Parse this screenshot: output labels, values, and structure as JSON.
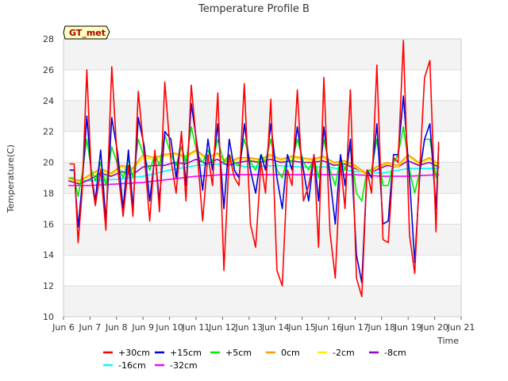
{
  "chart_data": {
    "type": "line",
    "title": "Temperature Profile B",
    "xlabel": "Time",
    "ylabel": "Temperature(C)",
    "badge": "GT_met",
    "xlim": [
      6,
      21
    ],
    "ylim": [
      10,
      28
    ],
    "x_ticks": [
      {
        "value": 6,
        "label": "Jun 6"
      },
      {
        "value": 7,
        "label": "Jun 7"
      },
      {
        "value": 8,
        "label": "Jun 8"
      },
      {
        "value": 9,
        "label": "Jun 9"
      },
      {
        "value": 10,
        "label": "Jun 10"
      },
      {
        "value": 11,
        "label": "Jun 11"
      },
      {
        "value": 12,
        "label": "Jun 12"
      },
      {
        "value": 13,
        "label": "Jun 13"
      },
      {
        "value": 14,
        "label": "Jun 14"
      },
      {
        "value": 15,
        "label": "Jun 15"
      },
      {
        "value": 16,
        "label": "Jun 16"
      },
      {
        "value": 17,
        "label": "Jun 17"
      },
      {
        "value": 18,
        "label": "Jun 18"
      },
      {
        "value": 19,
        "label": "Jun 19"
      },
      {
        "value": 20,
        "label": "Jun 20"
      },
      {
        "value": 21,
        "label": "Jun 21"
      }
    ],
    "y_ticks": [
      10,
      12,
      14,
      16,
      18,
      20,
      22,
      24,
      26,
      28
    ],
    "grid": true,
    "legend": "bottom",
    "colors": {
      "plot_bg": "#ffffff",
      "band_bg": "#f3f3f3",
      "grid": "#dddddd",
      "badge_bg": "#ffffc0"
    },
    "series": [
      {
        "name": "+30cm",
        "color": "#ff0000",
        "x": [
          6.25,
          6.4,
          6.55,
          6.7,
          6.88,
          7.05,
          7.2,
          7.4,
          7.6,
          7.82,
          8.05,
          8.25,
          8.45,
          8.62,
          8.82,
          9.05,
          9.25,
          9.45,
          9.62,
          9.82,
          10.05,
          10.25,
          10.45,
          10.62,
          10.82,
          11.05,
          11.25,
          11.45,
          11.62,
          11.82,
          12.05,
          12.25,
          12.45,
          12.62,
          12.82,
          13.05,
          13.25,
          13.45,
          13.62,
          13.82,
          14.05,
          14.25,
          14.45,
          14.62,
          14.82,
          15.05,
          15.25,
          15.45,
          15.62,
          15.82,
          16.05,
          16.25,
          16.45,
          16.62,
          16.82,
          17.05,
          17.25,
          17.45,
          17.62,
          17.82,
          18.05,
          18.25,
          18.45,
          18.62,
          18.82,
          19.05,
          19.25,
          19.45,
          19.62,
          19.82,
          20.05,
          20.15
        ],
        "y": [
          19.9,
          19.9,
          14.8,
          18.0,
          26.0,
          19.0,
          17.2,
          19.5,
          15.6,
          26.2,
          19.5,
          16.5,
          19.8,
          16.5,
          24.6,
          20.4,
          16.2,
          20.8,
          16.8,
          25.2,
          20.2,
          18.0,
          22.0,
          17.5,
          25.0,
          20.5,
          16.2,
          20.5,
          18.5,
          24.5,
          13.0,
          20.5,
          19.0,
          18.5,
          25.1,
          16.0,
          14.5,
          20.0,
          18.0,
          24.1,
          13.0,
          12.0,
          19.5,
          18.5,
          24.7,
          17.5,
          18.5,
          20.5,
          14.5,
          25.5,
          15.5,
          12.5,
          20.0,
          17.0,
          24.7,
          12.5,
          11.3,
          19.5,
          18.0,
          26.3,
          15.0,
          14.8,
          20.3,
          20.0,
          27.9,
          15.3,
          12.8,
          20.0,
          25.5,
          26.6,
          15.5,
          21.3
        ]
      },
      {
        "name": "+15cm",
        "color": "#0000dd",
        "x": [
          6.25,
          6.4,
          6.55,
          6.7,
          6.88,
          7.05,
          7.2,
          7.4,
          7.6,
          7.82,
          8.05,
          8.25,
          8.45,
          8.62,
          8.82,
          9.05,
          9.25,
          9.45,
          9.62,
          9.82,
          10.05,
          10.25,
          10.45,
          10.62,
          10.82,
          11.05,
          11.25,
          11.45,
          11.62,
          11.82,
          12.05,
          12.25,
          12.45,
          12.62,
          12.82,
          13.05,
          13.25,
          13.45,
          13.62,
          13.82,
          14.05,
          14.25,
          14.45,
          14.62,
          14.82,
          15.05,
          15.25,
          15.45,
          15.62,
          15.82,
          16.05,
          16.25,
          16.45,
          16.62,
          16.82,
          17.05,
          17.25,
          17.45,
          17.62,
          17.82,
          18.05,
          18.25,
          18.45,
          18.62,
          18.82,
          19.05,
          19.25,
          19.45,
          19.62,
          19.82,
          20.05,
          20.15
        ],
        "y": [
          19.5,
          19.5,
          15.8,
          18.5,
          23.0,
          19.2,
          17.5,
          20.8,
          16.2,
          22.9,
          20.5,
          17.0,
          20.8,
          17.0,
          22.9,
          21.0,
          17.5,
          20.5,
          17.5,
          22.0,
          21.5,
          19.0,
          21.8,
          18.5,
          23.8,
          21.0,
          18.2,
          21.5,
          19.5,
          22.5,
          17.0,
          21.5,
          19.5,
          19.0,
          22.5,
          19.5,
          18.0,
          20.5,
          19.5,
          22.5,
          19.0,
          17.0,
          20.5,
          19.5,
          22.3,
          19.5,
          17.5,
          20.5,
          17.5,
          22.3,
          19.0,
          16.0,
          20.5,
          18.5,
          21.5,
          14.0,
          12.2,
          19.5,
          19.0,
          22.5,
          16.0,
          16.2,
          20.5,
          20.5,
          24.3,
          19.0,
          13.5,
          19.5,
          21.5,
          22.5,
          17.0,
          21.0
        ]
      },
      {
        "name": "+5cm",
        "color": "#00ee00",
        "x": [
          6.25,
          6.4,
          6.55,
          6.7,
          6.88,
          7.05,
          7.2,
          7.4,
          7.6,
          7.82,
          8.05,
          8.25,
          8.45,
          8.62,
          8.82,
          9.05,
          9.25,
          9.45,
          9.62,
          9.82,
          10.05,
          10.25,
          10.45,
          10.62,
          10.82,
          11.05,
          11.25,
          11.45,
          11.62,
          11.82,
          12.05,
          12.25,
          12.45,
          12.62,
          12.82,
          13.05,
          13.25,
          13.45,
          13.62,
          13.82,
          14.05,
          14.25,
          14.45,
          14.62,
          14.82,
          15.05,
          15.25,
          15.45,
          15.62,
          15.82,
          16.05,
          16.25,
          16.45,
          16.62,
          16.82,
          17.05,
          17.25,
          17.45,
          17.62,
          17.82,
          18.05,
          18.25,
          18.45,
          18.62,
          18.82,
          19.05,
          19.25,
          19.45,
          19.62,
          19.82,
          20.05,
          20.15
        ],
        "y": [
          19.0,
          19.0,
          17.8,
          19.2,
          21.5,
          19.5,
          18.8,
          20.0,
          18.5,
          21.0,
          19.8,
          19.0,
          20.2,
          19.0,
          21.5,
          20.3,
          19.5,
          20.5,
          19.8,
          21.8,
          20.5,
          19.8,
          21.0,
          20.0,
          22.3,
          20.5,
          20.0,
          20.8,
          20.0,
          21.5,
          20.0,
          20.5,
          20.0,
          19.8,
          21.5,
          20.0,
          19.5,
          20.5,
          20.0,
          21.5,
          19.5,
          19.0,
          20.3,
          20.0,
          21.5,
          20.0,
          19.5,
          20.3,
          19.0,
          21.5,
          19.5,
          18.5,
          20.3,
          19.5,
          21.0,
          18.0,
          17.5,
          19.5,
          19.5,
          21.5,
          18.5,
          18.5,
          20.0,
          20.5,
          22.3,
          19.5,
          18.0,
          19.5,
          21.5,
          21.5,
          19.0,
          20.0
        ]
      },
      {
        "name": "0cm",
        "color": "#ff9900",
        "x": [
          6.2,
          6.6,
          7.0,
          7.4,
          7.8,
          8.2,
          8.6,
          9.0,
          9.4,
          9.8,
          10.2,
          10.6,
          11.0,
          11.4,
          11.8,
          12.2,
          12.6,
          13.0,
          13.4,
          13.8,
          14.2,
          14.6,
          15.0,
          15.4,
          15.8,
          16.2,
          16.6,
          17.0,
          17.4,
          17.8,
          18.2,
          18.6,
          19.0,
          19.4,
          19.8,
          20.15
        ],
        "y": [
          19.0,
          18.8,
          19.2,
          19.6,
          19.3,
          19.8,
          19.6,
          20.5,
          20.3,
          20.5,
          20.6,
          20.4,
          20.8,
          20.3,
          20.6,
          20.0,
          20.3,
          20.3,
          20.2,
          20.5,
          20.2,
          20.4,
          20.3,
          20.2,
          20.4,
          20.0,
          20.1,
          19.8,
          19.3,
          19.7,
          20.0,
          19.8,
          20.5,
          20.0,
          20.3,
          19.9
        ]
      },
      {
        "name": "-2cm",
        "color": "#ffee00",
        "x": [
          6.2,
          6.6,
          7.0,
          7.4,
          7.8,
          8.2,
          8.6,
          9.0,
          9.4,
          9.8,
          10.2,
          10.6,
          11.0,
          11.4,
          11.8,
          12.2,
          12.6,
          13.0,
          13.4,
          13.8,
          14.2,
          14.6,
          15.0,
          15.4,
          15.8,
          16.2,
          16.6,
          17.0,
          17.4,
          17.8,
          18.2,
          18.6,
          19.0,
          19.4,
          19.8,
          20.15
        ],
        "y": [
          18.9,
          18.7,
          19.1,
          19.5,
          19.2,
          19.7,
          19.5,
          20.3,
          20.2,
          20.4,
          20.5,
          20.3,
          20.7,
          20.2,
          20.5,
          19.9,
          20.2,
          20.2,
          20.1,
          20.4,
          20.1,
          20.3,
          20.2,
          20.1,
          20.3,
          19.9,
          20.0,
          19.7,
          19.2,
          19.6,
          19.9,
          19.7,
          20.4,
          19.9,
          20.2,
          19.8
        ]
      },
      {
        "name": "-8cm",
        "color": "#9900cc",
        "x": [
          6.2,
          6.6,
          7.0,
          7.4,
          7.8,
          8.2,
          8.6,
          9.0,
          9.4,
          9.8,
          10.2,
          10.6,
          11.0,
          11.4,
          11.8,
          12.2,
          12.6,
          13.0,
          13.4,
          13.8,
          14.2,
          14.6,
          15.0,
          15.4,
          15.8,
          16.2,
          16.6,
          17.0,
          17.4,
          17.8,
          18.2,
          18.6,
          19.0,
          19.4,
          19.8,
          20.15
        ],
        "y": [
          18.8,
          18.6,
          18.9,
          19.3,
          19.1,
          19.4,
          19.2,
          19.7,
          19.8,
          19.8,
          20.0,
          19.9,
          20.2,
          19.9,
          20.2,
          19.8,
          20.0,
          20.1,
          20.0,
          20.2,
          20.0,
          20.1,
          20.0,
          20.0,
          20.1,
          19.8,
          19.9,
          19.6,
          19.3,
          19.5,
          19.8,
          19.7,
          20.1,
          19.8,
          20.0,
          19.7
        ]
      },
      {
        "name": "-16cm",
        "color": "#00ffff",
        "x": [
          6.2,
          7.0,
          8.0,
          9.0,
          10.0,
          11.0,
          12.0,
          13.0,
          14.0,
          15.0,
          16.0,
          17.0,
          18.0,
          19.0,
          20.15
        ],
        "y": [
          18.9,
          18.8,
          18.9,
          19.1,
          19.5,
          19.8,
          19.9,
          19.7,
          19.8,
          19.7,
          19.7,
          19.4,
          19.3,
          19.6,
          19.6
        ]
      },
      {
        "name": "-32cm",
        "color": "#ff00ff",
        "x": [
          6.2,
          7.0,
          8.0,
          9.0,
          10.0,
          11.0,
          12.0,
          13.0,
          14.0,
          15.0,
          16.0,
          17.0,
          18.0,
          19.0,
          20.15
        ],
        "y": [
          18.5,
          18.5,
          18.6,
          18.7,
          18.9,
          19.1,
          19.2,
          19.2,
          19.2,
          19.2,
          19.2,
          19.2,
          19.1,
          19.1,
          19.2
        ]
      }
    ]
  }
}
